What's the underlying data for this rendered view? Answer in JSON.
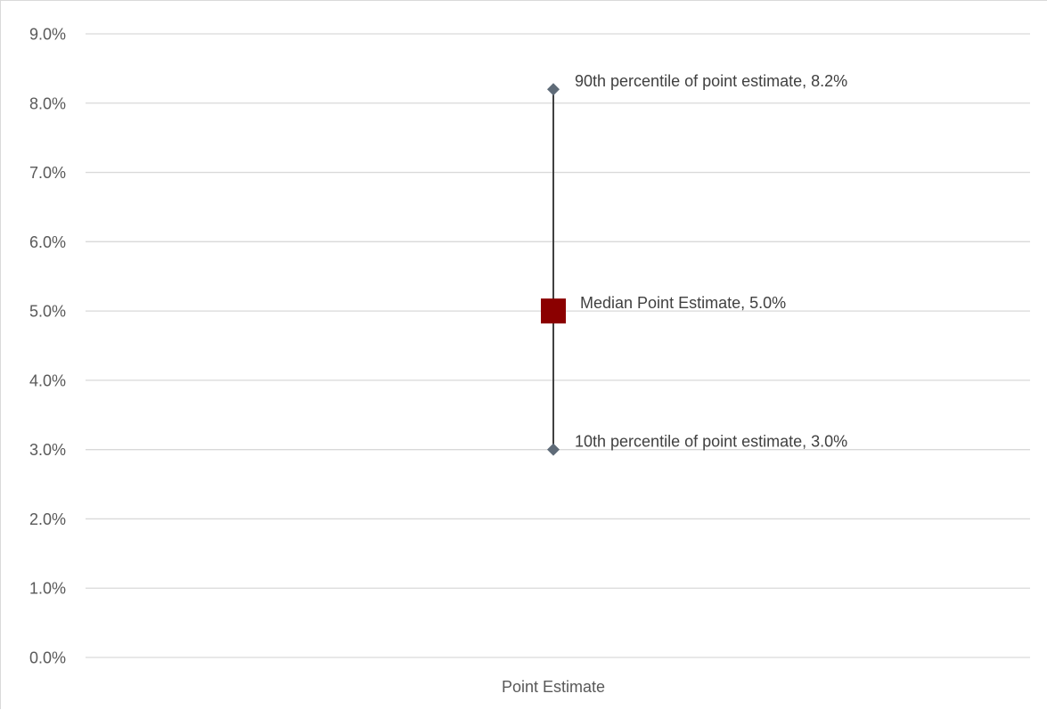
{
  "chart_data": {
    "type": "scatter",
    "title": "",
    "xlabel": "",
    "ylabel": "",
    "categories": [
      "Point Estimate"
    ],
    "ylim": [
      0,
      0.09
    ],
    "y_ticks": [
      0,
      0.01,
      0.02,
      0.03,
      0.04,
      0.05,
      0.06,
      0.07,
      0.08,
      0.09
    ],
    "y_tick_labels": [
      "0.0%",
      "1.0%",
      "2.0%",
      "3.0%",
      "4.0%",
      "5.0%",
      "6.0%",
      "7.0%",
      "8.0%",
      "9.0%"
    ],
    "y_format": "percent",
    "grid": true,
    "legend": "none",
    "series": [
      {
        "category": "Point Estimate",
        "y": 0.082,
        "marker": "diamond",
        "color": "#5f6b78",
        "label": "90th percentile of point estimate, 8.2%"
      },
      {
        "category": "Point Estimate",
        "y": 0.05,
        "marker": "square",
        "color": "#8b0000",
        "label": "Median Point Estimate, 5.0%"
      },
      {
        "category": "Point Estimate",
        "y": 0.03,
        "marker": "diamond",
        "color": "#5f6b78",
        "label": "10th percentile of point estimate, 3.0%"
      }
    ],
    "range_line": {
      "from": 0.03,
      "to": 0.082,
      "color": "#404040"
    }
  }
}
